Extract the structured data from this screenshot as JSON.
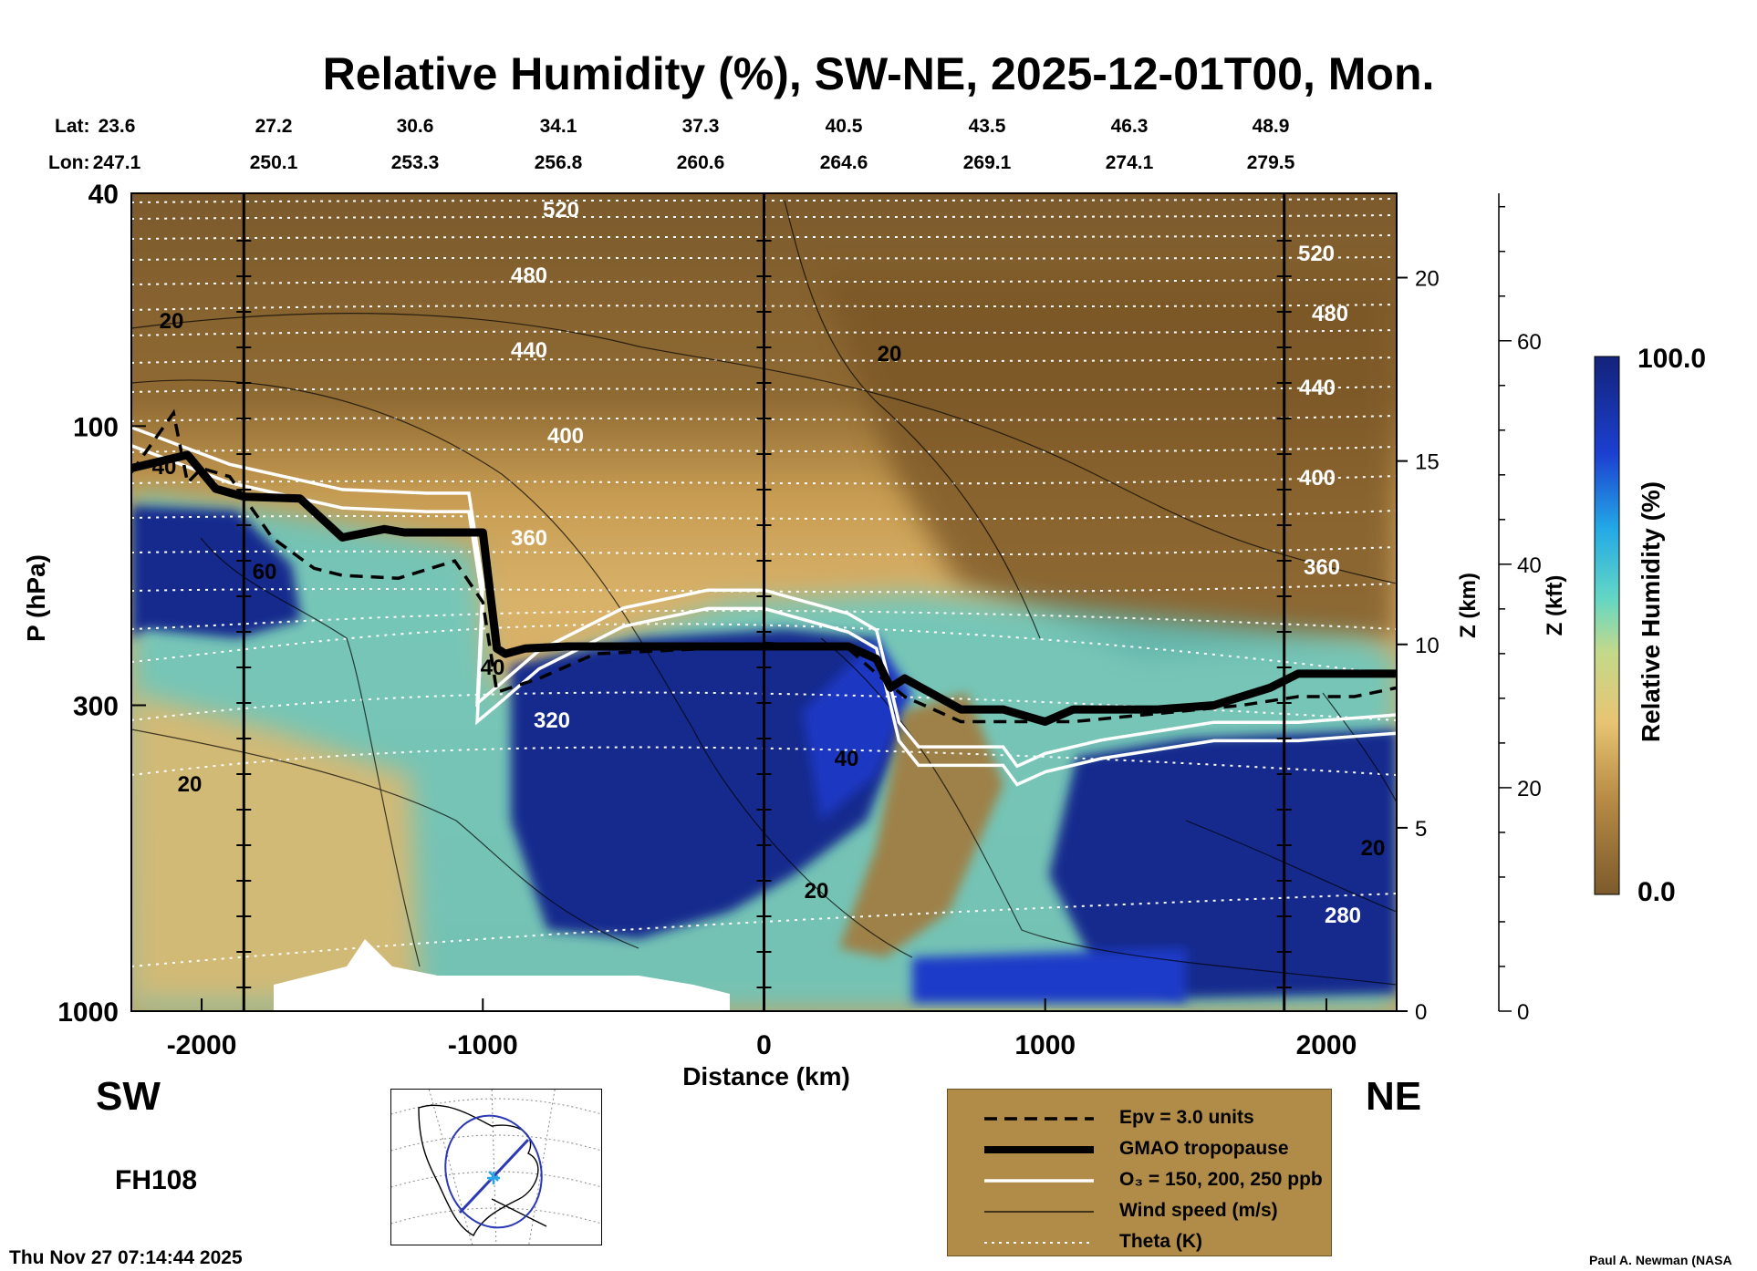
{
  "title": "Relative Humidity (%), SW-NE, 2025-12-01T00, Mon.",
  "lat_label": "Lat:",
  "lon_label": "Lon:",
  "lats": [
    "23.6",
    "27.2",
    "30.6",
    "34.1",
    "37.3",
    "40.5",
    "43.5",
    "46.3",
    "48.9"
  ],
  "lons": [
    "247.1",
    "250.1",
    "253.3",
    "256.8",
    "260.6",
    "264.6",
    "269.1",
    "274.1",
    "279.5"
  ],
  "left_end": "SW",
  "right_end": "NE",
  "forecast_hour": "FH108",
  "timestamp": "Thu Nov 27 07:14:44 2025",
  "credit": "Paul A. Newman (NASA",
  "colorbar": {
    "title": "Relative Humidity (%)",
    "max_label": "100.0",
    "min_label": "0.0"
  },
  "legend": [
    {
      "label": "Epv = 3.0 units",
      "style": "dashed"
    },
    {
      "label": "GMAO tropopause",
      "style": "thick"
    },
    {
      "label": "O₃ = 150, 200, 250 ppb",
      "style": "white"
    },
    {
      "label": "Wind speed (m/s)",
      "style": "thin"
    },
    {
      "label": "Theta (K)",
      "style": "dotted"
    }
  ],
  "colors": {
    "dry": "#7c5a2c",
    "mid_dry": "#d4a85a",
    "moist": "#39c7cf",
    "wet": "#1a2c9c",
    "saturated": "#13237a",
    "legend_bg": "#b08c48"
  },
  "chart_data": {
    "type": "heatmap",
    "title": "Relative Humidity (%), SW-NE, 2025-12-01T00, Mon.",
    "xlabel": "Distance (km)",
    "ylabel": "P (hPa)",
    "y2label": "Z (km)",
    "y3label": "Z (kft)",
    "xlim": [
      -2250,
      2250
    ],
    "ylim": [
      1000,
      40
    ],
    "yscale": "log",
    "xticks": [
      -2000,
      -1000,
      0,
      1000,
      2000
    ],
    "yticks": [
      1000,
      300,
      100,
      40
    ],
    "ytick_labels": [
      "1000",
      "300",
      "100",
      "40"
    ],
    "z_km_ticks": [
      0,
      5,
      10,
      15,
      20
    ],
    "z_kft_ticks": [
      0,
      20,
      40,
      60
    ],
    "colorbar_range": [
      0.0,
      100.0
    ],
    "theta_contours": [
      "520",
      "480",
      "440",
      "400",
      "360",
      "320",
      "280"
    ],
    "wind_contours": [
      "20",
      "40",
      "60"
    ],
    "tropopause": {
      "x": [
        -2250,
        -2050,
        -1950,
        -1850,
        -1650,
        -1500,
        -1350,
        -1280,
        -1000,
        -950,
        -920,
        -850,
        -700,
        -400,
        0,
        300,
        400,
        450,
        500,
        700,
        850,
        1000,
        1100,
        1400,
        1600,
        1800,
        1900,
        2250
      ],
      "p": [
        118,
        112,
        128,
        132,
        133,
        155,
        150,
        152,
        152,
        240,
        245,
        240,
        238,
        238,
        238,
        238,
        250,
        280,
        270,
        305,
        305,
        320,
        305,
        305,
        300,
        280,
        265,
        265
      ]
    },
    "epv": {
      "x": [
        -2250,
        -2100,
        -2050,
        -2000,
        -1900,
        -1750,
        -1600,
        -1500,
        -1300,
        -1100,
        -1000,
        -950,
        -800,
        -600,
        -200,
        0,
        300,
        400,
        500,
        700,
        900,
        1100,
        1400,
        1700,
        1900,
        2100,
        2250
      ],
      "p": [
        120,
        95,
        125,
        118,
        122,
        155,
        175,
        180,
        182,
        170,
        200,
        285,
        270,
        245,
        240,
        235,
        240,
        265,
        290,
        320,
        320,
        320,
        310,
        300,
        290,
        290,
        280
      ]
    },
    "o3_150": {
      "x": [
        -2250,
        -1900,
        -1500,
        -1200,
        -1050,
        -1000,
        -1020,
        -950,
        -800,
        -500,
        -200,
        0,
        300,
        400,
        450,
        480,
        550,
        850,
        900,
        1000,
        1200,
        1600,
        1900,
        2250
      ],
      "p": [
        108,
        125,
        138,
        140,
        140,
        200,
        320,
        300,
        260,
        220,
        205,
        205,
        225,
        240,
        300,
        345,
        380,
        380,
        410,
        390,
        370,
        345,
        345,
        335
      ]
    },
    "vertical_markers_km": [
      -1850,
      0,
      1850
    ]
  }
}
